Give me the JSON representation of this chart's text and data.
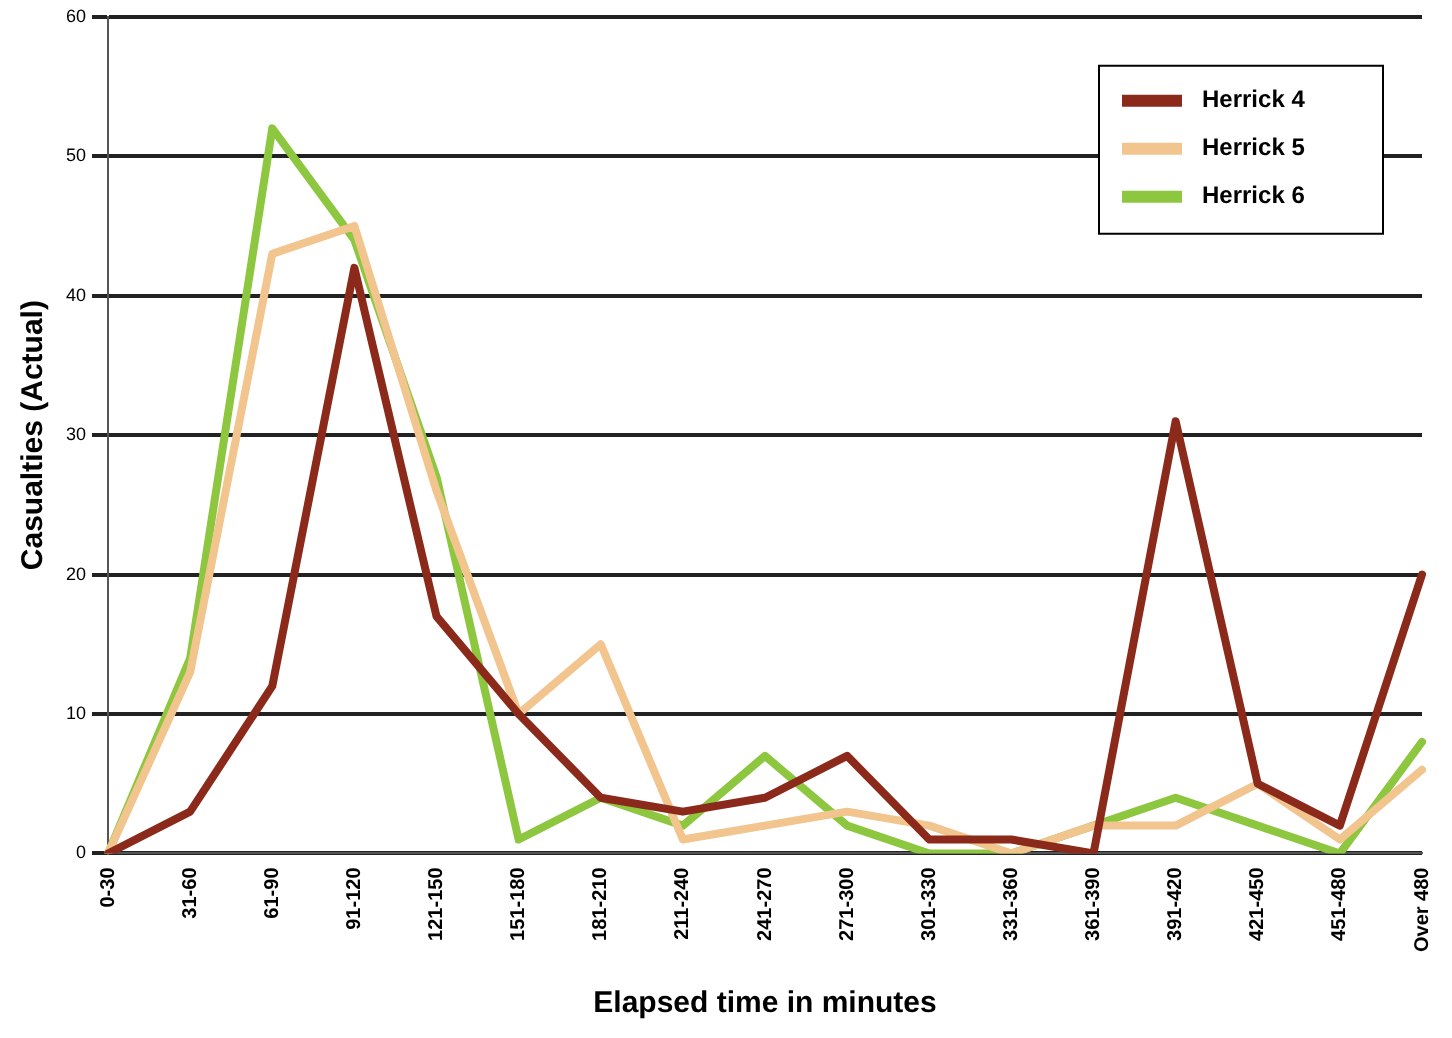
{
  "chart_data": {
    "type": "line",
    "xlabel": "Elapsed time in minutes",
    "ylabel": "Casualties (Actual)",
    "categories": [
      "0-30",
      "31-60",
      "61-90",
      "91-120",
      "121-150",
      "151-180",
      "181-210",
      "211-240",
      "241-270",
      "271-300",
      "301-330",
      "331-360",
      "361-390",
      "391-420",
      "421-450",
      "451-480",
      "Over 480"
    ],
    "series": [
      {
        "name": "Herrick 4",
        "color": "#8b2a1a",
        "values": [
          0,
          3,
          12,
          42,
          17,
          10,
          4,
          3,
          4,
          7,
          1,
          1,
          0,
          31,
          5,
          2,
          20
        ]
      },
      {
        "name": "Herrick 5",
        "color": "#f2c48e",
        "values": [
          0,
          13,
          43,
          45,
          26,
          10,
          15,
          1,
          2,
          3,
          2,
          0,
          2,
          2,
          5,
          1,
          6
        ]
      },
      {
        "name": "Herrick 6",
        "color": "#8dc63f",
        "values": [
          0,
          14,
          52,
          44,
          27,
          1,
          4,
          2,
          7,
          2,
          0,
          0,
          2,
          4,
          2,
          0,
          8
        ]
      }
    ],
    "ylim": [
      0,
      60
    ],
    "yticks": [
      0,
      10,
      20,
      30,
      40,
      50,
      60
    ],
    "grid": "y",
    "legend": "top right",
    "marker": "none",
    "line_style": "solid"
  }
}
